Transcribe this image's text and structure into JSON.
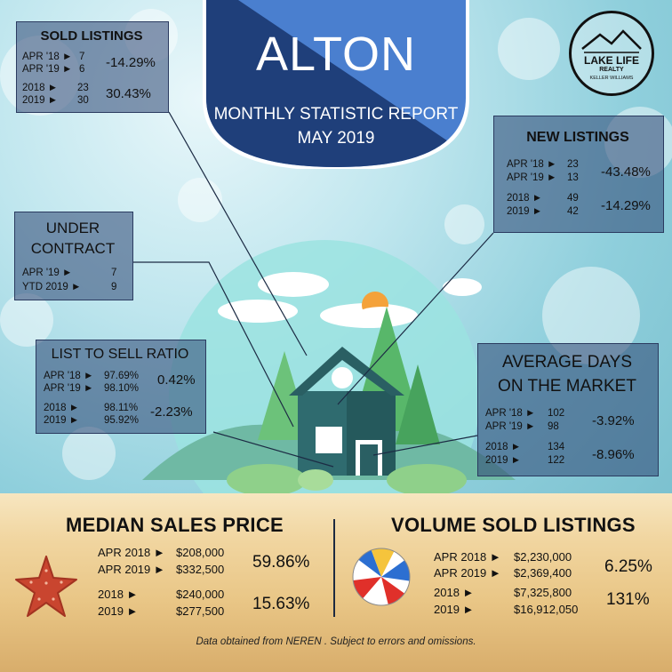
{
  "header": {
    "city": "ALTON",
    "report_title": "MONTHLY STATISTIC REPORT",
    "report_date": "MAY 2019"
  },
  "logo": {
    "line1": "LAKE LIFE",
    "line2": "REALTY",
    "line3": "KELLER WILLIAMS"
  },
  "sold_listings": {
    "title": "SOLD LISTINGS",
    "rows": [
      {
        "label": "APR '18 ►",
        "value": "7"
      },
      {
        "label": "APR '19 ►",
        "value": "6"
      },
      {
        "label": "2018  ►",
        "value": "23"
      },
      {
        "label": "2019  ►",
        "value": "30"
      }
    ],
    "pct_month": "-14.29%",
    "pct_year": "30.43%"
  },
  "new_listings": {
    "title": "NEW LISTINGS",
    "rows": [
      {
        "label": "APR '18 ►",
        "value": "23"
      },
      {
        "label": "APR '19 ►",
        "value": "13"
      },
      {
        "label": "2018  ►",
        "value": "49"
      },
      {
        "label": "2019  ►",
        "value": "42"
      }
    ],
    "pct_month": "-43.48%",
    "pct_year": "-14.29%"
  },
  "under_contract": {
    "title_line1": "UNDER",
    "title_line2": "CONTRACT",
    "rows": [
      {
        "label": "APR '19  ►",
        "value": "7"
      },
      {
        "label": "YTD 2019 ►",
        "value": "9"
      }
    ]
  },
  "list_to_sell": {
    "title": "LIST TO SELL  RATIO",
    "rows": [
      {
        "label": "APR '18 ►",
        "value": "97.69%"
      },
      {
        "label": "APR '19 ►",
        "value": "98.10%"
      },
      {
        "label": "2018   ►",
        "value": "98.11%"
      },
      {
        "label": "2019   ►",
        "value": "95.92%"
      }
    ],
    "pct_month": "0.42%",
    "pct_year": "-2.23%"
  },
  "avg_days": {
    "title_line1": "AVERAGE DAYS",
    "title_line2": "ON THE MARKET",
    "rows": [
      {
        "label": "APR '18 ►",
        "value": "102"
      },
      {
        "label": "APR '19 ►",
        "value": "98"
      },
      {
        "label": "2018   ►",
        "value": "134"
      },
      {
        "label": "2019   ►",
        "value": "122"
      }
    ],
    "pct_month": "-3.92%",
    "pct_year": "-8.96%"
  },
  "median_price": {
    "title": "MEDIAN SALES PRICE",
    "rows": [
      {
        "label": "APR 2018  ►",
        "value": "$208,000"
      },
      {
        "label": "APR 2019  ►",
        "value": "$332,500"
      },
      {
        "label": "2018        ►",
        "value": "$240,000"
      },
      {
        "label": "2019        ►",
        "value": "$277,500"
      }
    ],
    "pct_month": "59.86%",
    "pct_year": "15.63%"
  },
  "volume_sold": {
    "title": "VOLUME SOLD LISTINGS",
    "rows": [
      {
        "label": "APR 2018  ►",
        "value": "$2,230,000"
      },
      {
        "label": "APR 2019  ►",
        "value": "$2,369,400"
      },
      {
        "label": "2018        ►",
        "value": "$7,325,800"
      },
      {
        "label": "2019        ►",
        "value": "$16,912,050"
      }
    ],
    "pct_month": "6.25%",
    "pct_year": "131%"
  },
  "footer": {
    "disclaimer": "Data obtained from NEREN . Subject to errors and omissions."
  },
  "colors": {
    "banner_light": "#4a7fcf",
    "banner_dark": "#1f3f7a",
    "box_fill": "#2d4673",
    "house_wall": "#2f6b6f",
    "sun": "#f4a23a"
  }
}
